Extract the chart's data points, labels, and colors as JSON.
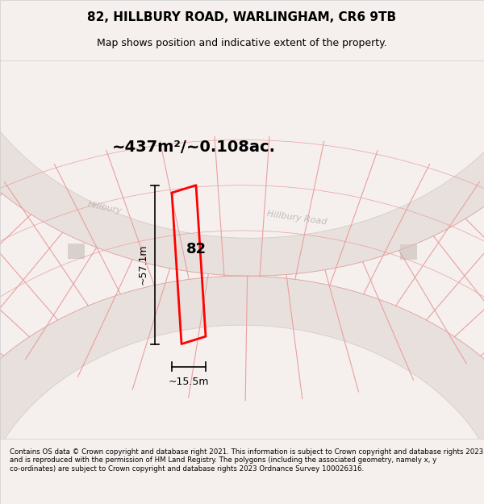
{
  "title": "82, HILLBURY ROAD, WARLINGHAM, CR6 9TB",
  "subtitle": "Map shows position and indicative extent of the property.",
  "footer": "Contains OS data © Crown copyright and database right 2021. This information is subject to Crown copyright and database rights 2023 and is reproduced with the permission of HM Land Registry. The polygons (including the associated geometry, namely x, y co-ordinates) are subject to Crown copyright and database rights 2023 Ordnance Survey 100026316.",
  "area_label": "~437m²/~0.108ac.",
  "width_label": "~15.5m",
  "height_label": "~57.1m",
  "property_number": "82",
  "bg_color": "#f5f0ee",
  "map_bg": "#f5f0ee",
  "road_color": "#e8e0dc",
  "road_outline": "#d0c8c0",
  "line_color": "#e8a0a0",
  "highlight_color": "#ff0000",
  "building_color": "#d8d0cc",
  "road_label_color": "#b0b0b0",
  "title_color": "#000000",
  "footer_color": "#000000"
}
